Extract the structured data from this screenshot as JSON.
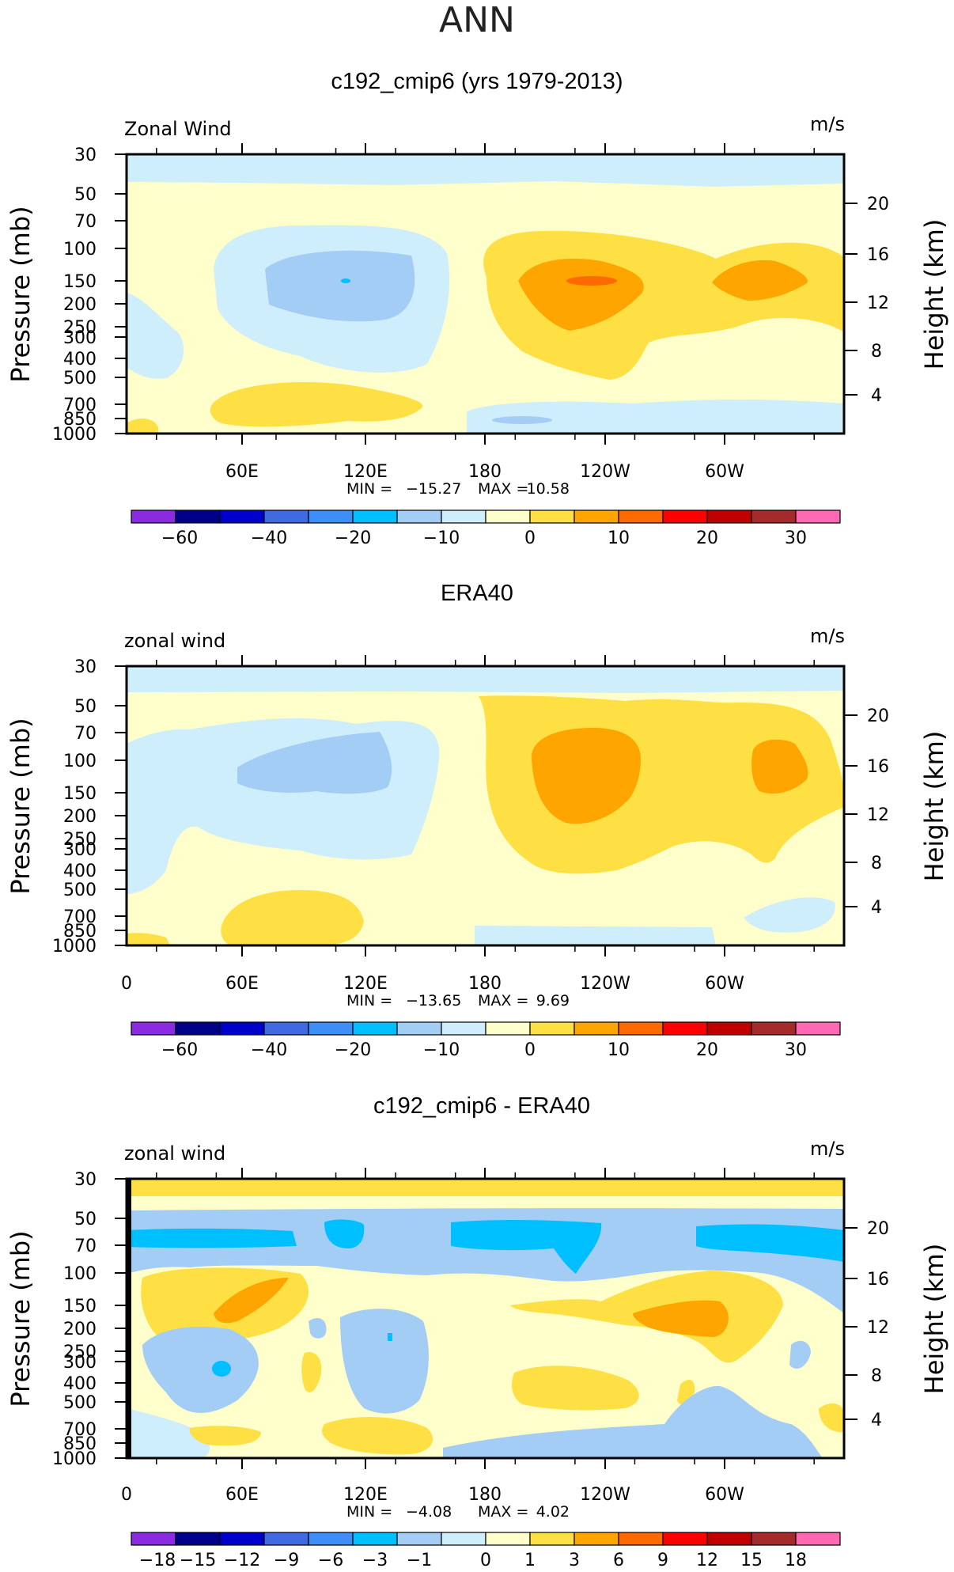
{
  "figure_title": "ANN",
  "y_axis_left_label": "Pressure (mb)",
  "y_axis_right_label": "Height (km)",
  "pressure_ticks": [
    "30",
    "50",
    "70",
    "100",
    "150",
    "200",
    "250",
    "300",
    "400",
    "500",
    "700",
    "850",
    "1000"
  ],
  "height_ticks": [
    "20",
    "16",
    "12",
    "8",
    "4"
  ],
  "chart_data": [
    {
      "type": "heatmap",
      "title": "c192_cmip6 (yrs 1979-2013)",
      "variable_label": "Zonal Wind",
      "units": "m/s",
      "x_tick_labels": [
        "60E",
        "120E",
        "180",
        "120W",
        "60W"
      ],
      "stats": {
        "min_label": "MIN =",
        "min": "−15.27",
        "max_label": "MAX =",
        "max": "10.58"
      },
      "colorbar_labels": [
        "−60",
        "−40",
        "−20",
        "−10",
        "0",
        "10",
        "20",
        "30"
      ],
      "ylim_mb": [
        1000,
        30
      ]
    },
    {
      "type": "heatmap",
      "title": "ERA40",
      "variable_label": "zonal wind",
      "units": "m/s",
      "x_tick_labels": [
        "0",
        "60E",
        "120E",
        "180",
        "120W",
        "60W"
      ],
      "stats": {
        "min_label": "MIN =",
        "min": "−13.65",
        "max_label": "MAX =",
        "max": "9.69"
      },
      "colorbar_labels": [
        "−60",
        "−40",
        "−20",
        "−10",
        "0",
        "10",
        "20",
        "30"
      ],
      "ylim_mb": [
        1000,
        30
      ]
    },
    {
      "type": "heatmap",
      "title": "c192_cmip6 - ERA40",
      "variable_label": "zonal wind",
      "units": "m/s",
      "x_tick_labels": [
        "0",
        "60E",
        "120E",
        "180",
        "120W",
        "60W"
      ],
      "stats": {
        "min_label": "MIN =",
        "min": "−4.08",
        "max_label": "MAX =",
        "max": "4.02"
      },
      "colorbar_labels": [
        "−18",
        "−15",
        "−12",
        "−9",
        "−6",
        "−3",
        "−1",
        "0",
        "1",
        "3",
        "6",
        "9",
        "12",
        "15",
        "18"
      ],
      "ylim_mb": [
        1000,
        30
      ]
    }
  ],
  "palette": [
    "#8a2be2",
    "#00008b",
    "#0000cd",
    "#4169e1",
    "#3d8ef7",
    "#00bfff",
    "#a3cdf5",
    "#cdeefa",
    "#ffffcc",
    "#fee044",
    "#ffa500",
    "#ff6a00",
    "#ff0000",
    "#c00000",
    "#a52a2a",
    "#ff69b4"
  ]
}
